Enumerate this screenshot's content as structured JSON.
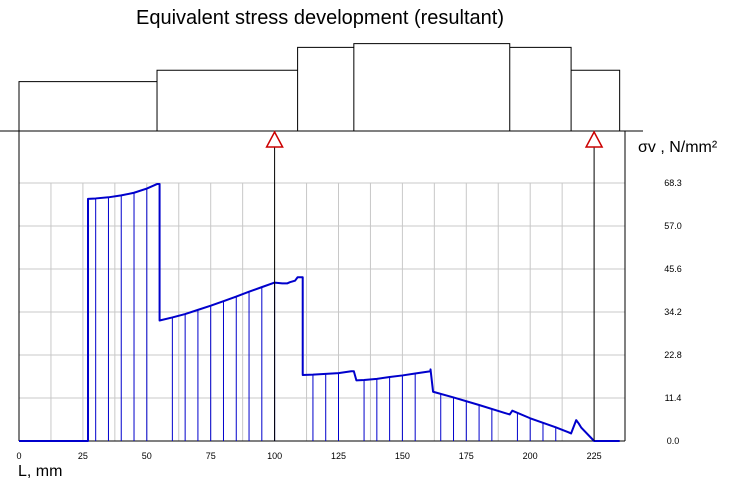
{
  "chart_data": {
    "type": "line",
    "title": "Equivalent stress development (resultant)",
    "xlabel": "L, mm",
    "ylabel": "σv , N/mm²",
    "xlim": [
      0,
      235
    ],
    "ylim": [
      0,
      68.3
    ],
    "x_ticks": [
      "0",
      "25",
      "50",
      "75",
      "100",
      "125",
      "150",
      "175",
      "200",
      "225"
    ],
    "y_ticks": [
      "68.3",
      "57.0",
      "45.6",
      "34.2",
      "22.8",
      "11.4",
      "0.0"
    ],
    "grid": true,
    "bearing_positions": [
      100,
      225
    ],
    "shaft_sections": [
      {
        "x_start": 0,
        "x_end": 54,
        "diameter": 13
      },
      {
        "x_start": 54,
        "x_end": 109,
        "diameter": 16
      },
      {
        "x_start": 109,
        "x_end": 131,
        "diameter": 22
      },
      {
        "x_start": 131,
        "x_end": 192,
        "diameter": 23
      },
      {
        "x_start": 192,
        "x_end": 216,
        "diameter": 22
      },
      {
        "x_start": 216,
        "x_end": 235,
        "diameter": 16
      }
    ],
    "series": [
      {
        "color": "#0000cc",
        "x": [
          0,
          27,
          27,
          30,
          35,
          40,
          45,
          50,
          54,
          55,
          55,
          60,
          65,
          70,
          75,
          80,
          85,
          90,
          95,
          100,
          103,
          104,
          105,
          106,
          107,
          108,
          109,
          111,
          111,
          115,
          120,
          125,
          130,
          131,
          132,
          135,
          140,
          145,
          150,
          155,
          161,
          161,
          162,
          170,
          180,
          190,
          192,
          193,
          200,
          210,
          215,
          216,
          218,
          219,
          220,
          225,
          235
        ],
        "y": [
          0,
          0,
          63.9,
          64,
          64.3,
          64.8,
          65.5,
          66.6,
          67.8,
          67.8,
          31.8,
          32.6,
          33.5,
          34.6,
          35.7,
          36.9,
          38.1,
          39.4,
          40.6,
          41.8,
          41.6,
          41.6,
          41.6,
          41.9,
          42.1,
          42.3,
          43.2,
          43.2,
          17.4,
          17.5,
          17.7,
          17.9,
          18.4,
          18.4,
          16,
          16.1,
          16.4,
          16.9,
          17.3,
          17.8,
          18.4,
          18.9,
          13,
          11.5,
          9.5,
          7.4,
          7,
          8,
          6,
          3.6,
          2.3,
          2,
          5.5,
          4.6,
          3.5,
          0,
          0
        ]
      }
    ],
    "hatch_x": [
      30,
      35,
      40,
      45,
      50,
      60,
      65,
      70,
      75,
      80,
      85,
      90,
      95,
      100,
      115,
      120,
      125,
      135,
      140,
      145,
      150,
      155,
      165,
      170,
      175,
      180,
      185,
      195,
      200,
      205,
      210
    ]
  }
}
